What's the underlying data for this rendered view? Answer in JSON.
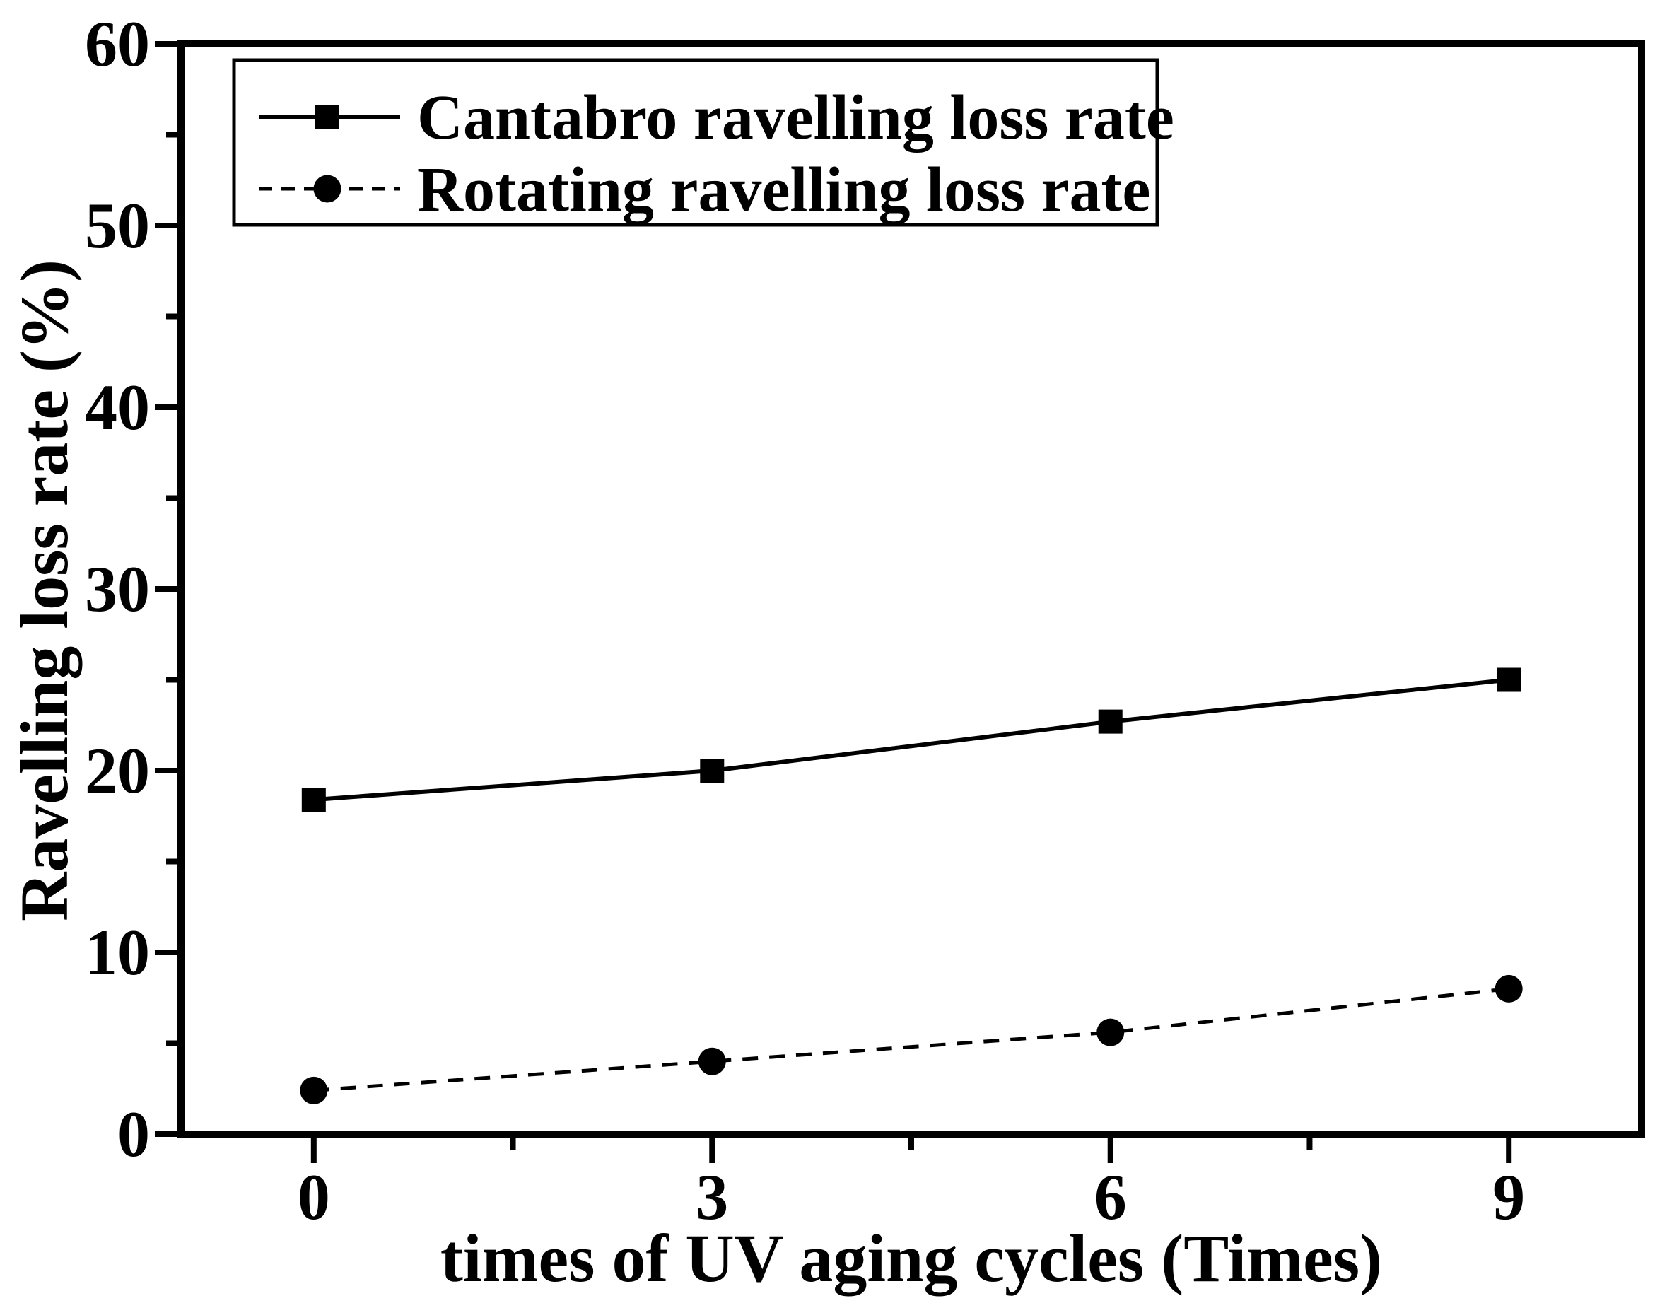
{
  "figure": {
    "background": "#ffffff",
    "ink": "#000000"
  },
  "chart_data": {
    "type": "line",
    "title": "",
    "xlabel": "times of UV aging cycles (Times)",
    "ylabel": "Ravelling loss rate (%)",
    "x": [
      0,
      3,
      6,
      9
    ],
    "series": [
      {
        "name": "Cantabro ravelling loss rate",
        "values": [
          18.4,
          20.0,
          22.7,
          25.0
        ],
        "line": "solid",
        "marker": "square",
        "color": "#000000"
      },
      {
        "name": "Rotating ravelling loss rate",
        "values": [
          2.4,
          4.0,
          5.6,
          8.0
        ],
        "line": "dashed",
        "marker": "circle",
        "color": "#000000"
      }
    ],
    "xlim": [
      -1,
      10
    ],
    "ylim": [
      0,
      60
    ],
    "x_major_ticks": [
      0,
      3,
      6,
      9
    ],
    "x_minor_ticks": [
      1.5,
      4.5,
      7.5
    ],
    "y_major_ticks": [
      0,
      10,
      20,
      30,
      40,
      50,
      60
    ],
    "y_minor_ticks": [
      5,
      15,
      25,
      35,
      45,
      55
    ],
    "grid": false,
    "legend_position": "upper-left",
    "legend_entries": [
      "Cantabro ravelling loss rate",
      "Rotating ravelling loss rate"
    ]
  }
}
